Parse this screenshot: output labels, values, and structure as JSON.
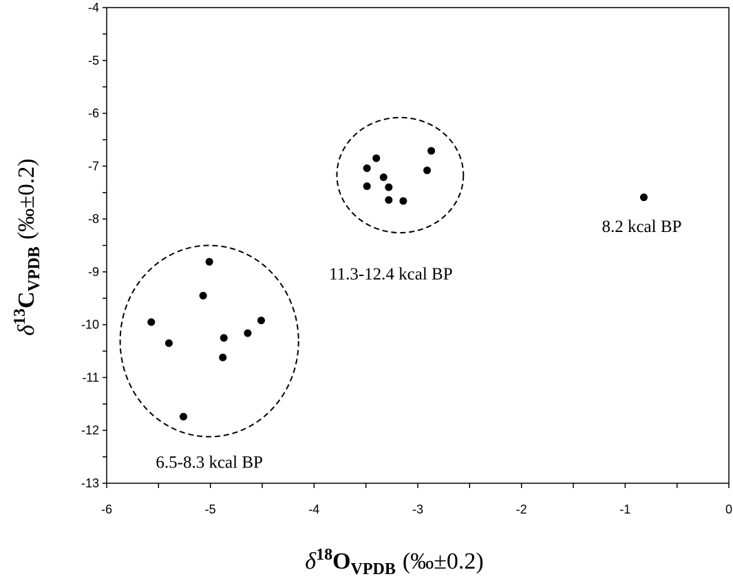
{
  "chart_data": {
    "type": "scatter",
    "xlim": [
      -6,
      0
    ],
    "ylim": [
      -13,
      -4
    ],
    "x_ticks": [
      -6,
      -5,
      -4,
      -3,
      -2,
      -1,
      0
    ],
    "y_ticks": [
      -4,
      -5,
      -6,
      -7,
      -8,
      -9,
      -10,
      -11,
      -12,
      -13
    ],
    "x_tick_labels": [
      "-6",
      "-5",
      "-4",
      "-3",
      "-2",
      "-1",
      "0"
    ],
    "y_tick_labels": [
      "-4",
      "-5",
      "-6",
      "-7",
      "-8",
      "-9",
      "-10",
      "-11",
      "-12",
      "-13"
    ],
    "grid": false,
    "xlabel": {
      "delta": "δ",
      "sup": "18",
      "main": "O",
      "sub": "VPDB",
      "unit": "(‰±0.2)"
    },
    "ylabel": {
      "delta": "δ",
      "sup": "13",
      "main": "C",
      "sub": "VPDB",
      "unit": "(‰±0.2)"
    },
    "series": [
      {
        "points": [
          {
            "x": -5.57,
            "y": -9.95
          },
          {
            "x": -5.4,
            "y": -10.35
          },
          {
            "x": -5.07,
            "y": -9.45
          },
          {
            "x": -5.01,
            "y": -8.81
          },
          {
            "x": -4.87,
            "y": -10.25
          },
          {
            "x": -4.88,
            "y": -10.62
          },
          {
            "x": -4.64,
            "y": -10.16
          },
          {
            "x": -4.51,
            "y": -9.92
          },
          {
            "x": -5.26,
            "y": -11.74
          },
          {
            "x": -3.49,
            "y": -7.04
          },
          {
            "x": -3.49,
            "y": -7.38
          },
          {
            "x": -3.4,
            "y": -6.85
          },
          {
            "x": -3.33,
            "y": -7.21
          },
          {
            "x": -3.28,
            "y": -7.4
          },
          {
            "x": -3.28,
            "y": -7.64
          },
          {
            "x": -3.14,
            "y": -7.66
          },
          {
            "x": -2.91,
            "y": -7.08
          },
          {
            "x": -2.87,
            "y": -6.71
          },
          {
            "x": -0.82,
            "y": -7.59
          }
        ]
      }
    ],
    "groups": [
      {
        "label": "6.5-8.3 kcal BP",
        "center": {
          "x": -5.01,
          "y": -10.31
        },
        "rx": 0.86,
        "ry": 1.81
      },
      {
        "label": "11.3-12.4 kcal BP",
        "center": {
          "x": -3.17,
          "y": -7.17
        },
        "rx": 0.61,
        "ry": 1.09
      }
    ],
    "annotations": [
      {
        "label": "8.2 kcal BP",
        "x": -0.84,
        "y": -8.13
      },
      {
        "label": "11.3-12.4 kcal BP",
        "x": -3.26,
        "y": -9.03
      },
      {
        "label": "6.5-8.3 kcal BP",
        "x": -5.01,
        "y": -12.59
      }
    ]
  }
}
